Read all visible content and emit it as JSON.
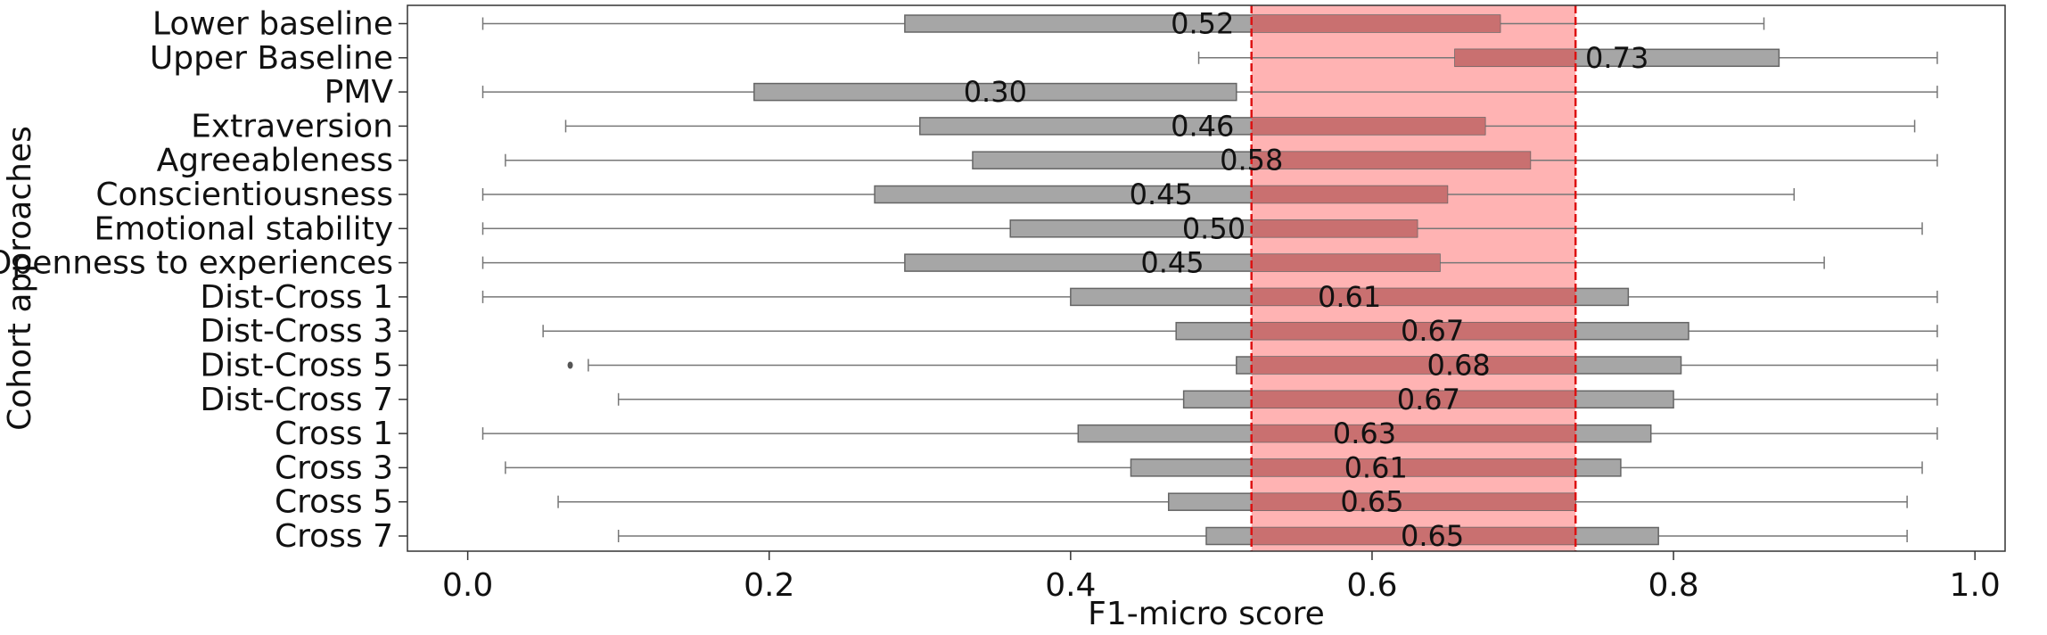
{
  "chart_data": {
    "type": "boxplot",
    "orientation": "horizontal",
    "xlabel": "F1-micro score",
    "ylabel": "Cohort approaches",
    "xlim": [
      -0.04,
      1.02
    ],
    "xticks": [
      0.0,
      0.2,
      0.4,
      0.6,
      0.8,
      1.0
    ],
    "xtick_labels": [
      "0.0",
      "0.2",
      "0.4",
      "0.6",
      "0.8",
      "1.0"
    ],
    "grid": false,
    "highlight_band": {
      "x0": 0.52,
      "x1": 0.735,
      "fill": "#ffb3b3",
      "edge": "#dd1111"
    },
    "colors": {
      "box": "#a6a6a6",
      "box_edge": "#666666",
      "whisker": "#777777",
      "overlap": "#c97070"
    },
    "categories": [
      "Lower baseline",
      "Upper Baseline",
      "PMV",
      "Extraversion",
      "Agreeableness",
      "Conscientiousness",
      "Emotional stability",
      "Openness to experiences",
      "Dist-Cross 1",
      "Dist-Cross 3",
      "Dist-Cross 5",
      "Dist-Cross 7",
      "Cross 1",
      "Cross 3",
      "Cross 5",
      "Cross 7"
    ],
    "boxes": [
      {
        "label": "Lower baseline",
        "whisker_low": 0.01,
        "q1": 0.29,
        "q3": 0.685,
        "whisker_high": 0.86,
        "median_label": "0.52"
      },
      {
        "label": "Upper Baseline",
        "whisker_low": 0.485,
        "q1": 0.655,
        "q3": 0.87,
        "whisker_high": 0.975,
        "median_label": "0.73"
      },
      {
        "label": "PMV",
        "whisker_low": 0.01,
        "q1": 0.19,
        "q3": 0.51,
        "whisker_high": 0.975,
        "median_label": "0.30"
      },
      {
        "label": "Extraversion",
        "whisker_low": 0.065,
        "q1": 0.3,
        "q3": 0.675,
        "whisker_high": 0.96,
        "median_label": "0.46"
      },
      {
        "label": "Agreeableness",
        "whisker_low": 0.025,
        "q1": 0.335,
        "q3": 0.705,
        "whisker_high": 0.975,
        "median_label": "0.58"
      },
      {
        "label": "Conscientiousness",
        "whisker_low": 0.01,
        "q1": 0.27,
        "q3": 0.65,
        "whisker_high": 0.88,
        "median_label": "0.45"
      },
      {
        "label": "Emotional stability",
        "whisker_low": 0.01,
        "q1": 0.36,
        "q3": 0.63,
        "whisker_high": 0.965,
        "median_label": "0.50"
      },
      {
        "label": "Openness to experiences",
        "whisker_low": 0.01,
        "q1": 0.29,
        "q3": 0.645,
        "whisker_high": 0.9,
        "median_label": "0.45"
      },
      {
        "label": "Dist-Cross 1",
        "whisker_low": 0.01,
        "q1": 0.4,
        "q3": 0.77,
        "whisker_high": 0.975,
        "median_label": "0.61"
      },
      {
        "label": "Dist-Cross 3",
        "whisker_low": 0.05,
        "q1": 0.47,
        "q3": 0.81,
        "whisker_high": 0.975,
        "median_label": "0.67"
      },
      {
        "label": "Dist-Cross 5",
        "whisker_low": 0.08,
        "q1": 0.51,
        "q3": 0.805,
        "whisker_high": 0.975,
        "median_label": "0.68",
        "outliers": [
          0.068
        ]
      },
      {
        "label": "Dist-Cross 7",
        "whisker_low": 0.1,
        "q1": 0.475,
        "q3": 0.8,
        "whisker_high": 0.975,
        "median_label": "0.67"
      },
      {
        "label": "Cross 1",
        "whisker_low": 0.01,
        "q1": 0.405,
        "q3": 0.785,
        "whisker_high": 0.975,
        "median_label": "0.63"
      },
      {
        "label": "Cross 3",
        "whisker_low": 0.025,
        "q1": 0.44,
        "q3": 0.765,
        "whisker_high": 0.965,
        "median_label": "0.61"
      },
      {
        "label": "Cross 5",
        "whisker_low": 0.06,
        "q1": 0.465,
        "q3": 0.735,
        "whisker_high": 0.955,
        "median_label": "0.65"
      },
      {
        "label": "Cross 7",
        "whisker_low": 0.1,
        "q1": 0.49,
        "q3": 0.79,
        "whisker_high": 0.955,
        "median_label": "0.65"
      }
    ]
  }
}
